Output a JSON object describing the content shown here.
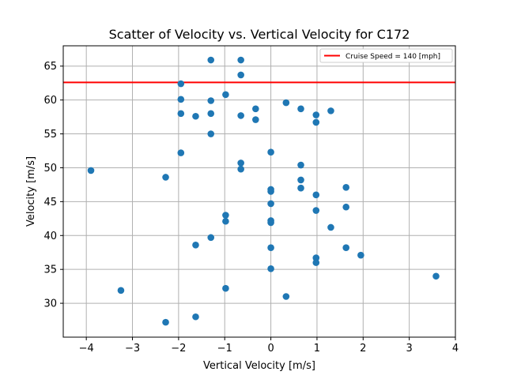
{
  "chart_data": {
    "type": "scatter",
    "title": "Scatter of Velocity vs. Vertical Velocity for C172",
    "xlabel": "Vertical Velocity [m/s]",
    "ylabel": "Velocity [m/s]",
    "xlim": [
      -4.5,
      4.0
    ],
    "ylim": [
      25.0,
      68.0
    ],
    "xticks": [
      -4,
      -3,
      -2,
      -1,
      0,
      1,
      2,
      3,
      4
    ],
    "xtick_labels": [
      "−4",
      "−3",
      "−2",
      "−1",
      "0",
      "1",
      "2",
      "3",
      "4"
    ],
    "yticks": [
      30,
      35,
      40,
      45,
      50,
      55,
      60,
      65
    ],
    "ytick_labels": [
      "30",
      "35",
      "40",
      "45",
      "50",
      "55",
      "60",
      "65"
    ],
    "grid": true,
    "legend_position": "top-right",
    "colors": {
      "points": "#1f77b4",
      "cruise_line": "#ff0000"
    },
    "reference_line": {
      "label": "Cruise Speed = 140 [mph]",
      "y": 62.6
    },
    "points": [
      {
        "x": -1.3,
        "y": 65.9
      },
      {
        "x": -0.65,
        "y": 65.9
      },
      {
        "x": -0.65,
        "y": 63.7
      },
      {
        "x": -1.95,
        "y": 62.4
      },
      {
        "x": -1.95,
        "y": 60.1
      },
      {
        "x": -1.3,
        "y": 59.9
      },
      {
        "x": -0.98,
        "y": 60.8
      },
      {
        "x": -1.95,
        "y": 58.0
      },
      {
        "x": -1.63,
        "y": 57.6
      },
      {
        "x": -1.3,
        "y": 58.0
      },
      {
        "x": -0.65,
        "y": 57.7
      },
      {
        "x": -0.33,
        "y": 58.7
      },
      {
        "x": -0.33,
        "y": 57.1
      },
      {
        "x": 0.33,
        "y": 59.6
      },
      {
        "x": 0.65,
        "y": 58.7
      },
      {
        "x": 0.98,
        "y": 57.8
      },
      {
        "x": 0.98,
        "y": 56.7
      },
      {
        "x": 1.3,
        "y": 58.4
      },
      {
        "x": -1.3,
        "y": 55.0
      },
      {
        "x": -1.95,
        "y": 52.2
      },
      {
        "x": 0.0,
        "y": 52.3
      },
      {
        "x": -0.65,
        "y": 50.7
      },
      {
        "x": -0.65,
        "y": 49.8
      },
      {
        "x": 0.65,
        "y": 50.4
      },
      {
        "x": -3.9,
        "y": 49.6
      },
      {
        "x": -2.28,
        "y": 48.6
      },
      {
        "x": 0.65,
        "y": 48.2
      },
      {
        "x": 0.65,
        "y": 47.0
      },
      {
        "x": 0.0,
        "y": 46.8
      },
      {
        "x": 0.0,
        "y": 46.5
      },
      {
        "x": 1.63,
        "y": 47.1
      },
      {
        "x": 0.98,
        "y": 46.0
      },
      {
        "x": 0.0,
        "y": 44.7
      },
      {
        "x": 1.63,
        "y": 44.2
      },
      {
        "x": 0.98,
        "y": 43.7
      },
      {
        "x": -0.98,
        "y": 43.0
      },
      {
        "x": -0.98,
        "y": 42.1
      },
      {
        "x": 0.0,
        "y": 42.2
      },
      {
        "x": 0.0,
        "y": 41.9
      },
      {
        "x": 1.3,
        "y": 41.2
      },
      {
        "x": -1.3,
        "y": 39.7
      },
      {
        "x": -1.63,
        "y": 38.6
      },
      {
        "x": 0.0,
        "y": 38.2
      },
      {
        "x": 1.63,
        "y": 38.2
      },
      {
        "x": 1.95,
        "y": 37.1
      },
      {
        "x": 0.98,
        "y": 36.7
      },
      {
        "x": 0.98,
        "y": 36.0
      },
      {
        "x": 0.0,
        "y": 35.1
      },
      {
        "x": 3.58,
        "y": 34.0
      },
      {
        "x": -0.98,
        "y": 32.2
      },
      {
        "x": -3.25,
        "y": 31.9
      },
      {
        "x": 0.33,
        "y": 31.0
      },
      {
        "x": -1.63,
        "y": 28.0
      },
      {
        "x": -2.28,
        "y": 27.2
      }
    ]
  }
}
